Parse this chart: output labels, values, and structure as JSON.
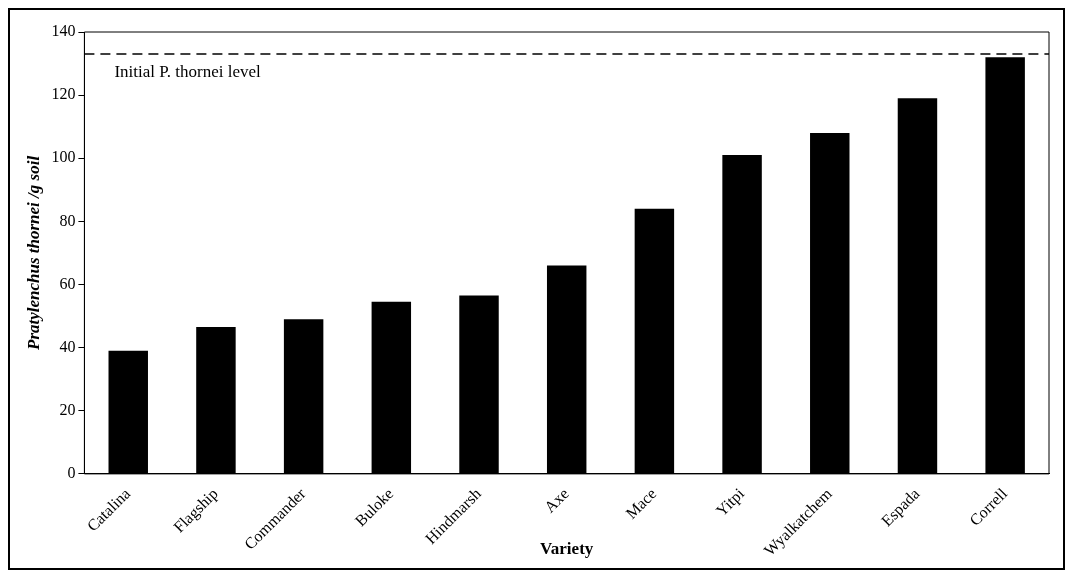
{
  "chart_data": {
    "type": "bar",
    "xlabel": "Variety",
    "ylabel": "Pratylenchus thornei /g soil",
    "categories": [
      "Catalina",
      "Flagship",
      "Commander",
      "Buloke",
      "Hindmarsh",
      "Axe",
      "Mace",
      "Yitpi",
      "Wyalkatchem",
      "Espada",
      "Correll"
    ],
    "values": [
      39,
      46.5,
      49,
      54.5,
      56.5,
      66,
      84,
      101,
      108,
      119,
      132
    ],
    "color": "#000000",
    "ylim": [
      0,
      140
    ],
    "yticks": [
      0,
      20,
      40,
      60,
      80,
      100,
      120,
      140
    ],
    "grid": false,
    "legend": false,
    "ref_lines": [
      {
        "axis": "y",
        "value": 133,
        "label": "Initial P. thornei level",
        "color": "#000000",
        "line_style": "dashed"
      }
    ]
  }
}
